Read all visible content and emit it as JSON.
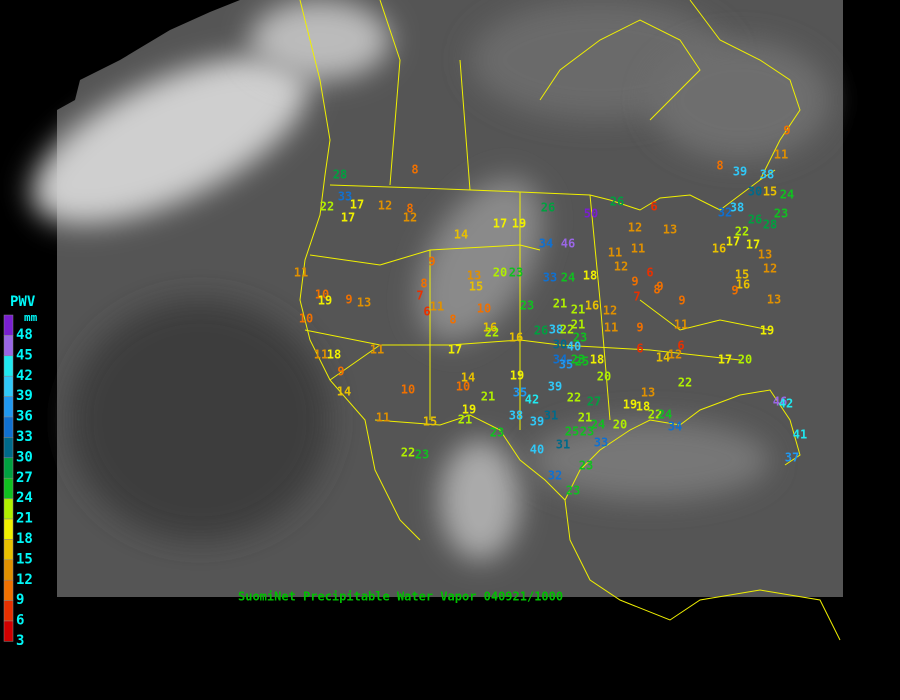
{
  "caption": "SuomiNet Precipitable Water Vapor 040921/1000",
  "legend": {
    "title": "PWV",
    "unit": "mm",
    "entries": [
      {
        "value": 48,
        "color": "#7a1fd0"
      },
      {
        "value": 45,
        "color": "#9a66e6"
      },
      {
        "value": 42,
        "color": "#20e8f0"
      },
      {
        "value": 39,
        "color": "#30c8f8"
      },
      {
        "value": 36,
        "color": "#2098f0"
      },
      {
        "value": 33,
        "color": "#1070d0"
      },
      {
        "value": 30,
        "color": "#006a8a"
      },
      {
        "value": 27,
        "color": "#00a040"
      },
      {
        "value": 24,
        "color": "#10c020"
      },
      {
        "value": 21,
        "color": "#b0f000"
      },
      {
        "value": 18,
        "color": "#f0f000"
      },
      {
        "value": 15,
        "color": "#e8c000"
      },
      {
        "value": 12,
        "color": "#e09000"
      },
      {
        "value": 9,
        "color": "#f07000"
      },
      {
        "value": 6,
        "color": "#e83000"
      },
      {
        "value": 3,
        "color": "#d00000"
      }
    ]
  },
  "stations": [
    28,
    33,
    22,
    17,
    17,
    12,
    8,
    12,
    8,
    14,
    17,
    19,
    26,
    50,
    26,
    34,
    46,
    6,
    12,
    13,
    11,
    10,
    19,
    9,
    13,
    10,
    9,
    8,
    7,
    11,
    6,
    8,
    13,
    15,
    10,
    20,
    23,
    16,
    22,
    33,
    24,
    18,
    11,
    11,
    12,
    6,
    9,
    8,
    7,
    9,
    9,
    23,
    21,
    21,
    16,
    12,
    21,
    11,
    9,
    11,
    26,
    38,
    22,
    23,
    16,
    30,
    40,
    6,
    14,
    12,
    6,
    17,
    20,
    19,
    8,
    26,
    39,
    30,
    38,
    15,
    24,
    38,
    32,
    22,
    28,
    23,
    17,
    16,
    17,
    13,
    12,
    15,
    16,
    9,
    13,
    9,
    11,
    11,
    18,
    9,
    14,
    11,
    10,
    11,
    15,
    10,
    14,
    21,
    19,
    21,
    17,
    23,
    22,
    23,
    19,
    35,
    42,
    38,
    39,
    31,
    39,
    34,
    35,
    23,
    18,
    20,
    25,
    22,
    27,
    21,
    25,
    23,
    33,
    24,
    20,
    19,
    18,
    22,
    13,
    22,
    24,
    34,
    40,
    31,
    23,
    32,
    23,
    46,
    42,
    41,
    37
  ]
}
